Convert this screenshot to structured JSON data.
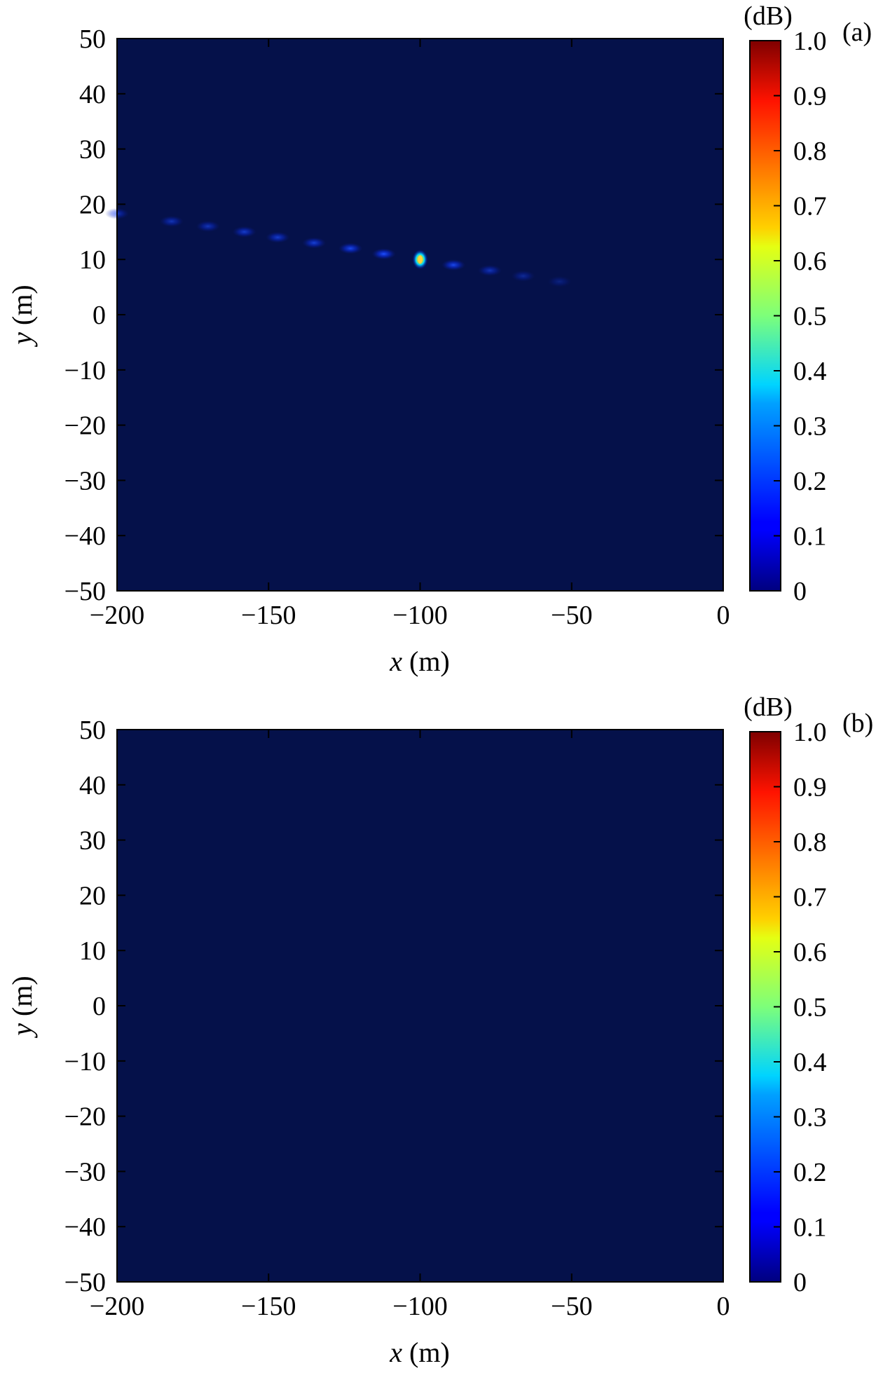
{
  "chart_data": [
    {
      "type": "heatmap",
      "panel_label": "(a)",
      "xlabel_var": "x",
      "xlabel_unit": " (m)",
      "ylabel_var": "y",
      "ylabel_unit": " (m)",
      "xlim": [
        -200,
        0
      ],
      "ylim": [
        -50,
        50
      ],
      "x_ticks": [
        -200,
        -150,
        -100,
        -50,
        0
      ],
      "x_tick_labels": [
        "−200",
        "−150",
        "−100",
        "−50",
        "0"
      ],
      "y_ticks": [
        50,
        40,
        30,
        20,
        10,
        0,
        -10,
        -20,
        -30,
        -40,
        -50
      ],
      "y_tick_labels": [
        "50",
        "40",
        "30",
        "20",
        "10",
        "0",
        "−10",
        "−20",
        "−30",
        "−40",
        "−50"
      ],
      "colorbar": {
        "unit_label": "(dB)",
        "range": [
          0,
          1.0
        ],
        "ticks": [
          1.0,
          0.9,
          0.8,
          0.7,
          0.6,
          0.5,
          0.4,
          0.3,
          0.2,
          0.1,
          0
        ],
        "tick_labels": [
          "1.0",
          "0.9",
          "0.8",
          "0.7",
          "0.6",
          "0.5",
          "0.4",
          "0.3",
          "0.2",
          "0.1",
          "0"
        ]
      },
      "background_value": 0,
      "peaks": [
        {
          "x": -200,
          "y": 18.3,
          "value": 0.1
        },
        {
          "x": -182,
          "y": 16.9,
          "value": 0.1
        },
        {
          "x": -170,
          "y": 16.0,
          "value": 0.1
        },
        {
          "x": -158,
          "y": 15.0,
          "value": 0.12
        },
        {
          "x": -147,
          "y": 14.0,
          "value": 0.12
        },
        {
          "x": -135,
          "y": 13.0,
          "value": 0.13
        },
        {
          "x": -123,
          "y": 12.0,
          "value": 0.15
        },
        {
          "x": -112,
          "y": 11.0,
          "value": 0.18
        },
        {
          "x": -100,
          "y": 10.0,
          "value": 1.0
        },
        {
          "x": -89,
          "y": 9.0,
          "value": 0.15
        },
        {
          "x": -77,
          "y": 8.0,
          "value": 0.1
        },
        {
          "x": -66,
          "y": 7.0,
          "value": 0.07
        },
        {
          "x": -54,
          "y": 6.0,
          "value": 0.05
        }
      ]
    },
    {
      "type": "heatmap",
      "panel_label": "(b)",
      "xlabel_var": "x",
      "xlabel_unit": " (m)",
      "ylabel_var": "y",
      "ylabel_unit": " (m)",
      "xlim": [
        -200,
        0
      ],
      "ylim": [
        -50,
        50
      ],
      "x_ticks": [
        -200,
        -150,
        -100,
        -50,
        0
      ],
      "x_tick_labels": [
        "−200",
        "−150",
        "−100",
        "−50",
        "0"
      ],
      "y_ticks": [
        50,
        40,
        30,
        20,
        10,
        0,
        -10,
        -20,
        -30,
        -40,
        -50
      ],
      "y_tick_labels": [
        "50",
        "40",
        "30",
        "20",
        "10",
        "0",
        "−10",
        "−20",
        "−30",
        "−40",
        "−50"
      ],
      "colorbar": {
        "unit_label": "(dB)",
        "range": [
          0,
          1.0
        ],
        "ticks": [
          1.0,
          0.9,
          0.8,
          0.7,
          0.6,
          0.5,
          0.4,
          0.3,
          0.2,
          0.1,
          0
        ],
        "tick_labels": [
          "1.0",
          "0.9",
          "0.8",
          "0.7",
          "0.6",
          "0.5",
          "0.4",
          "0.3",
          "0.2",
          "0.1",
          "0"
        ]
      },
      "background_value": 0,
      "peaks": []
    }
  ]
}
